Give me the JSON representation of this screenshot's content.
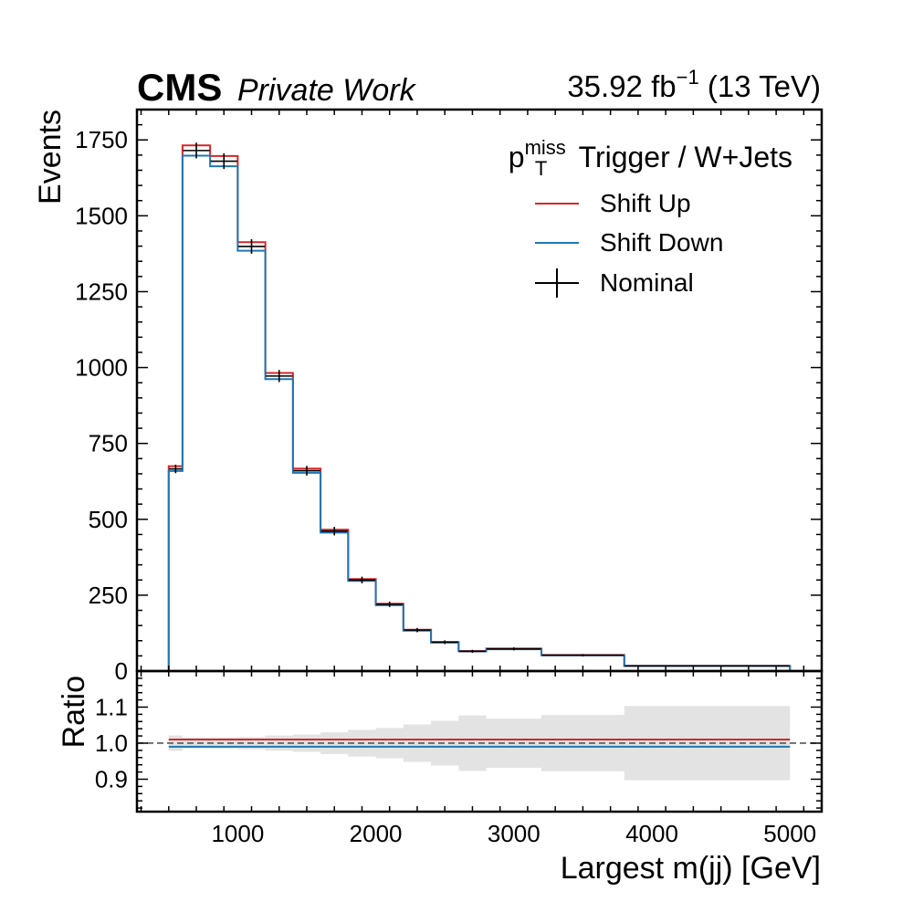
{
  "header": {
    "experiment": "CMS",
    "status": "Private Work",
    "lumi": "35.92 fb",
    "lumi_exp": "−1",
    "energy": "(13 TeV)"
  },
  "legend": {
    "title_main": "p",
    "title_sup": "miss",
    "title_sub": "T",
    "title_rest": "Trigger / W+Jets",
    "placement": "top-right"
  },
  "colors": {
    "up": "#d62728",
    "down": "#1f77b4",
    "nominal": "#000000",
    "band": "#e3e3e3"
  },
  "chart_data": [
    {
      "type": "histogram",
      "xlabel": "Largest m(jj) [GeV]",
      "ylabel": "Events",
      "xlim": [
        270,
        5230
      ],
      "ylim": [
        0,
        1850
      ],
      "x_ticks": [
        1000,
        2000,
        3000,
        4000,
        5000
      ],
      "y_ticks": [
        0,
        250,
        500,
        750,
        1000,
        1250,
        1500,
        1750
      ],
      "bin_edges": [
        500,
        600,
        800,
        1000,
        1200,
        1400,
        1600,
        1800,
        2000,
        2200,
        2400,
        2600,
        2800,
        3200,
        3800,
        5000
      ],
      "series": [
        {
          "name": "Shift Up",
          "style": "step",
          "color": "#d62728",
          "values": [
            675,
            1732,
            1697,
            1413,
            982,
            667,
            466,
            303,
            222,
            136,
            96,
            66,
            74,
            53,
            17
          ]
        },
        {
          "name": "Shift Down",
          "style": "step",
          "color": "#1f77b4",
          "values": [
            659,
            1698,
            1663,
            1385,
            962,
            653,
            456,
            297,
            217,
            133,
            94,
            65,
            72,
            52,
            17
          ]
        },
        {
          "name": "Nominal",
          "style": "errorbar",
          "color": "#000000",
          "values": [
            666,
            1715,
            1680,
            1399,
            972,
            660,
            461,
            300,
            220,
            135,
            95,
            65,
            73,
            52,
            17
          ],
          "errors": [
            14,
            26,
            26,
            24,
            20,
            16,
            14,
            11,
            9,
            7,
            6,
            5,
            5,
            4,
            2
          ]
        }
      ]
    },
    {
      "type": "ratio",
      "ylabel": "Ratio",
      "ylim": [
        0.81,
        1.2
      ],
      "y_ticks": [
        0.9,
        1.0,
        1.1
      ],
      "y_tick_labels": [
        "0.9",
        "1.0",
        "1.1"
      ],
      "reference_line": 1.0,
      "shift_up_ratio": 1.01,
      "shift_down_ratio": 0.99,
      "uncertainty_band": [
        0.021,
        0.015,
        0.016,
        0.017,
        0.021,
        0.024,
        0.03,
        0.037,
        0.042,
        0.052,
        0.062,
        0.077,
        0.068,
        0.078,
        0.103
      ]
    }
  ]
}
